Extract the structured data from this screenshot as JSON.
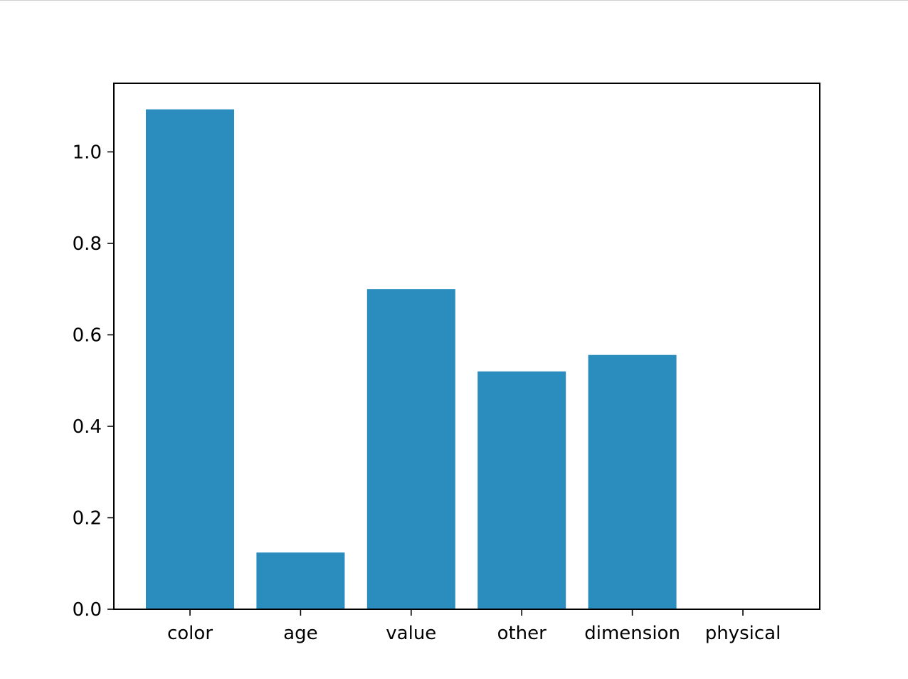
{
  "chart_data": {
    "type": "bar",
    "categories": [
      "color",
      "age",
      "value",
      "other",
      "dimension",
      "physical"
    ],
    "values": [
      1.093,
      0.124,
      0.7,
      0.52,
      0.556,
      0.0
    ],
    "title": "",
    "xlabel": "",
    "ylabel": "",
    "ylim": [
      0,
      1.15
    ],
    "yticks": [
      0.0,
      0.2,
      0.4,
      0.6,
      0.8,
      1.0
    ],
    "ytick_labels": [
      "0.0",
      "0.2",
      "0.4",
      "0.6",
      "0.8",
      "1.0"
    ],
    "grid": false,
    "legend": "none",
    "bar_color": "#2b8cbe"
  }
}
